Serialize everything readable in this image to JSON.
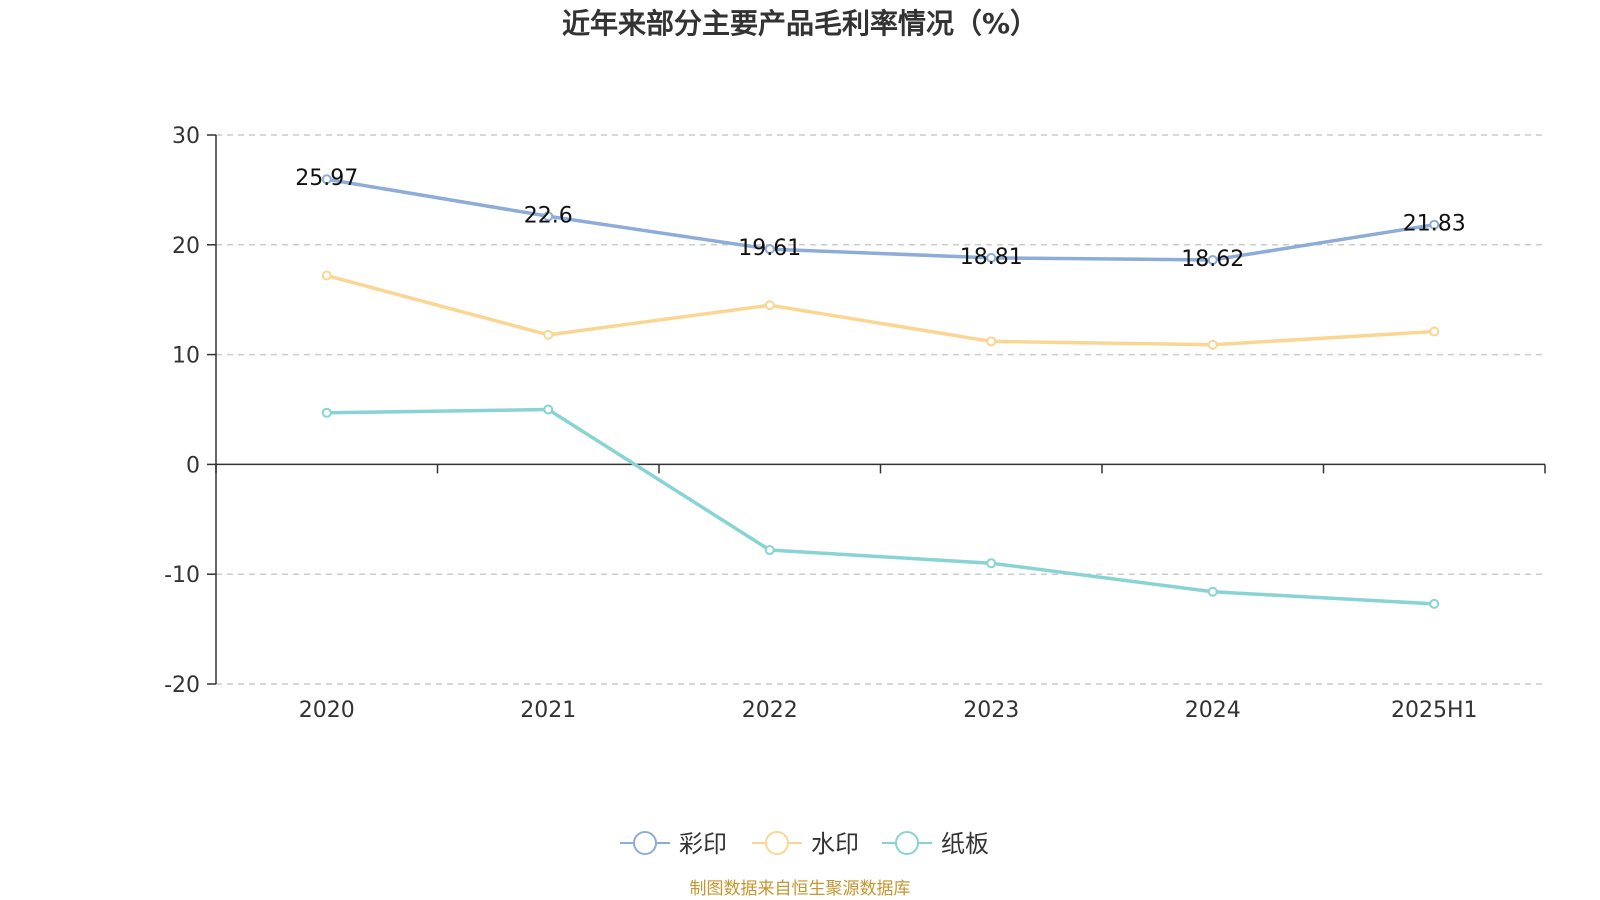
{
  "chart_data": {
    "type": "line",
    "title": "近年来部分主要产品毛利率情况（%）",
    "categories": [
      "2020",
      "2021",
      "2022",
      "2023",
      "2024",
      "2025H1"
    ],
    "ylim": [
      -20,
      30
    ],
    "yticks": [
      30,
      20,
      10,
      0,
      -10,
      -20
    ],
    "grid": true,
    "legend_position": "bottom-center",
    "series": [
      {
        "name": "彩印",
        "color": "#8eacd8",
        "values": [
          25.97,
          22.6,
          19.61,
          18.81,
          18.62,
          21.83
        ],
        "labels": [
          "25.97",
          "22.6",
          "19.61",
          "18.81",
          "18.62",
          "21.83"
        ]
      },
      {
        "name": "水印",
        "color": "#fbd693",
        "values": [
          17.2,
          11.8,
          14.5,
          11.2,
          10.9,
          12.1
        ]
      },
      {
        "name": "纸板",
        "color": "#88d3d4",
        "values": [
          4.7,
          5.0,
          -7.8,
          -9.0,
          -11.6,
          -12.7
        ]
      }
    ],
    "source": "制图数据来自恒生聚源数据库"
  }
}
